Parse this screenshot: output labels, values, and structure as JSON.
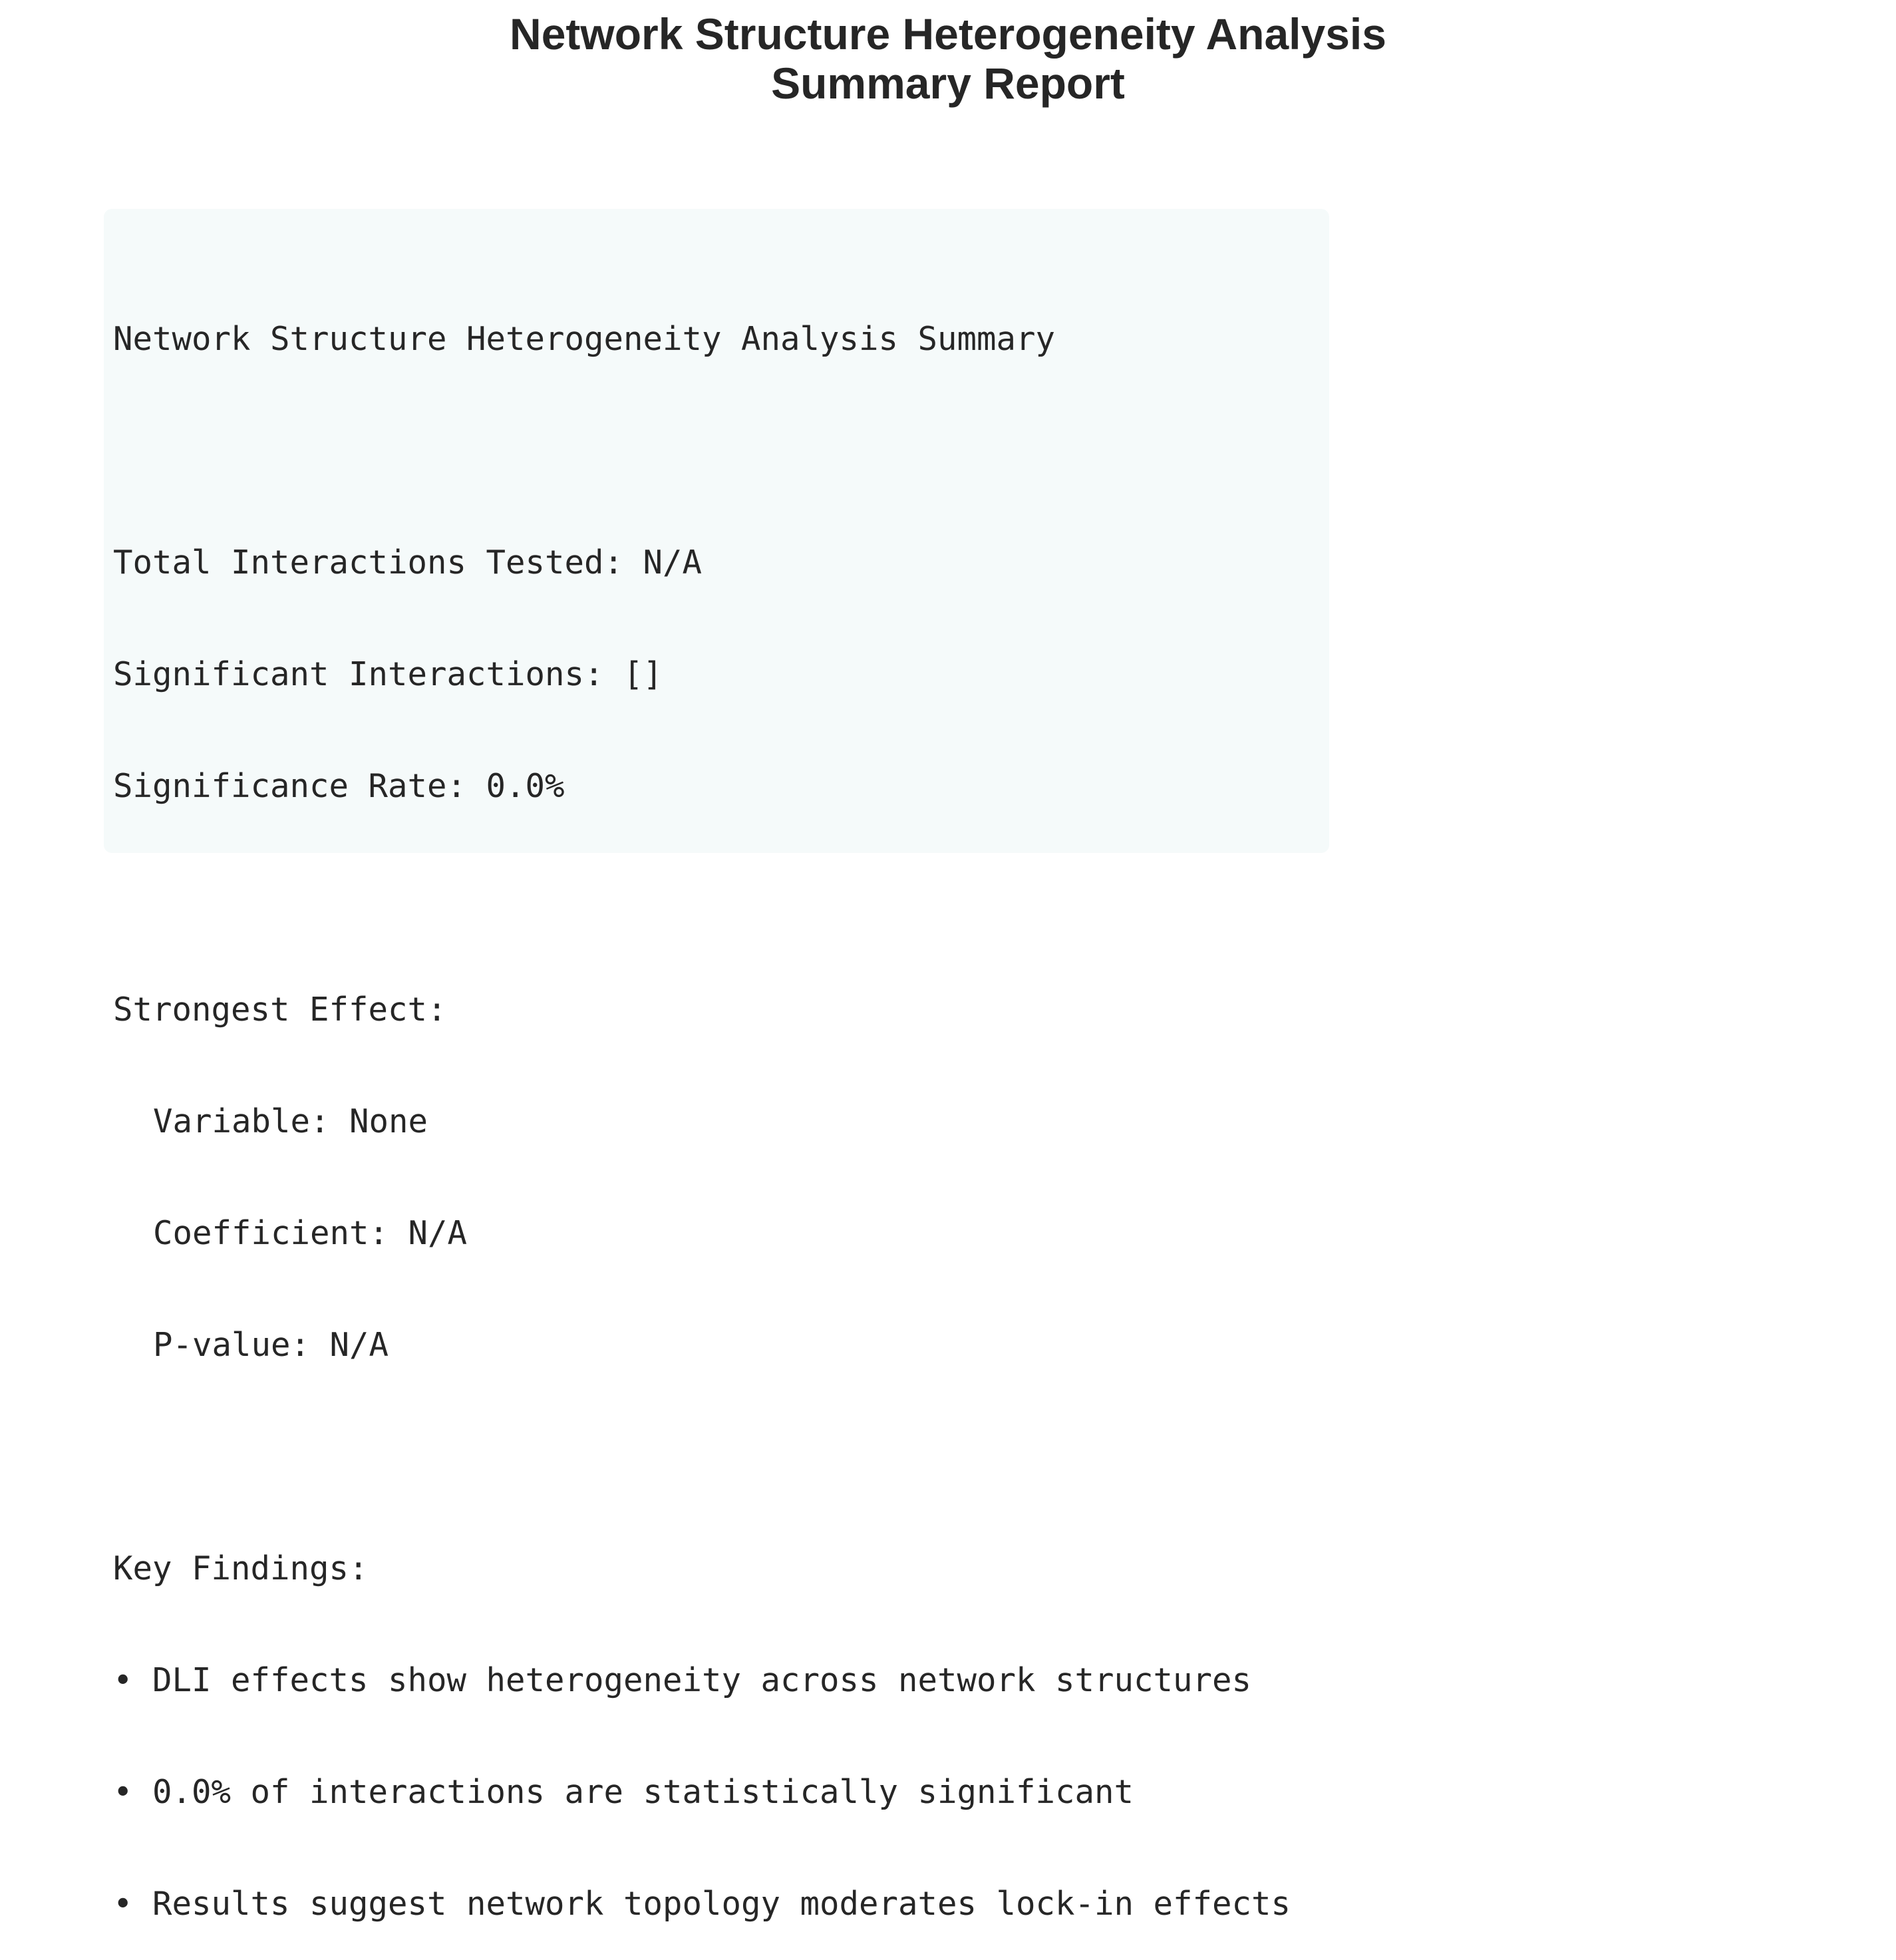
{
  "title": {
    "line1": "Network Structure Heterogeneity Analysis",
    "line2": "Summary Report"
  },
  "summary": {
    "heading": "Network Structure Heterogeneity Analysis Summary",
    "total_interactions": "Total Interactions Tested: N/A",
    "significant_interactions": "Significant Interactions: []",
    "significance_rate": "Significance Rate: 0.0%",
    "strongest_effect": {
      "label": "Strongest Effect:",
      "variable": "Variable: None",
      "coefficient": "Coefficient: N/A",
      "p_value": "P-value: N/A"
    },
    "key_findings": {
      "label": "Key Findings:",
      "items": [
        "• DLI effects show heterogeneity across network structures",
        "• 0.0% of interactions are statistically significant",
        "• Results suggest network topology moderates lock-in effects"
      ]
    }
  },
  "colors": {
    "text": "#262626",
    "box_background": "#f5fafa"
  }
}
